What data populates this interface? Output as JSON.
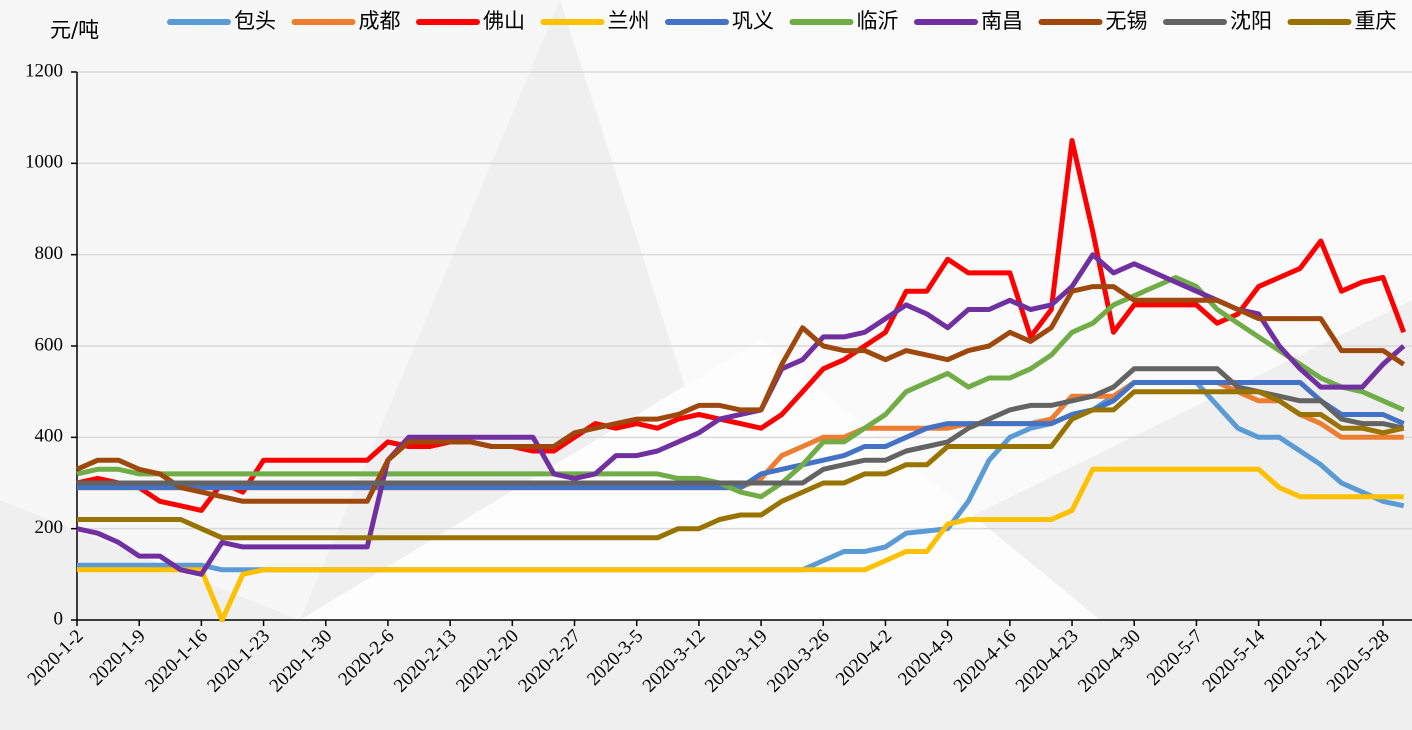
{
  "chart_data": {
    "type": "line",
    "y_label": "元/吨",
    "categories": [
      "2020-1-2",
      null,
      null,
      "2020-1-9",
      null,
      null,
      "2020-1-16",
      null,
      null,
      "2020-1-23",
      null,
      null,
      "2020-1-30",
      null,
      null,
      "2020-2-6",
      null,
      null,
      "2020-2-13",
      null,
      null,
      "2020-2-20",
      null,
      null,
      "2020-2-27",
      null,
      null,
      "2020-3-5",
      null,
      null,
      "2020-3-12",
      null,
      null,
      "2020-3-19",
      null,
      null,
      "2020-3-26",
      null,
      null,
      "2020-4-2",
      null,
      null,
      "2020-4-9",
      null,
      null,
      "2020-4-16",
      null,
      null,
      "2020-4-23",
      null,
      null,
      "2020-4-30",
      null,
      null,
      "2020-5-7",
      null,
      null,
      "2020-5-14",
      null,
      null,
      "2020-5-21",
      null,
      null,
      "2020-5-28",
      null
    ],
    "ylim": [
      0,
      1200
    ],
    "yticks": [
      0,
      200,
      400,
      600,
      800,
      1000,
      1200
    ],
    "grid": true,
    "series": [
      {
        "name": "包头",
        "color": "#5b9bd5",
        "values": [
          120,
          120,
          120,
          120,
          120,
          120,
          120,
          110,
          110,
          110,
          110,
          110,
          110,
          110,
          110,
          110,
          110,
          110,
          110,
          110,
          110,
          110,
          110,
          110,
          110,
          110,
          110,
          110,
          110,
          110,
          110,
          110,
          110,
          110,
          110,
          110,
          130,
          150,
          150,
          160,
          190,
          195,
          200,
          260,
          350,
          400,
          420,
          430,
          450,
          460,
          490,
          520,
          520,
          520,
          520,
          470,
          420,
          400,
          400,
          370,
          340,
          300,
          280,
          260,
          250
        ]
      },
      {
        "name": "成都",
        "color": "#ed7d31",
        "values": [
          290,
          290,
          290,
          290,
          290,
          290,
          290,
          290,
          290,
          290,
          290,
          290,
          290,
          290,
          290,
          290,
          290,
          290,
          290,
          290,
          290,
          290,
          290,
          290,
          290,
          290,
          290,
          290,
          290,
          290,
          290,
          290,
          290,
          310,
          360,
          380,
          400,
          400,
          420,
          420,
          420,
          420,
          420,
          430,
          430,
          430,
          430,
          440,
          490,
          490,
          490,
          520,
          520,
          520,
          520,
          520,
          500,
          480,
          480,
          450,
          430,
          400,
          400,
          400,
          400
        ]
      },
      {
        "name": "佛山",
        "color": "#ff0000",
        "values": [
          300,
          310,
          300,
          290,
          260,
          250,
          240,
          300,
          280,
          350,
          350,
          350,
          350,
          350,
          350,
          390,
          380,
          380,
          390,
          390,
          380,
          380,
          370,
          370,
          400,
          430,
          420,
          430,
          420,
          440,
          450,
          440,
          430,
          420,
          450,
          500,
          550,
          570,
          600,
          630,
          720,
          720,
          790,
          760,
          760,
          760,
          620,
          680,
          1050,
          850,
          630,
          690,
          690,
          690,
          690,
          650,
          670,
          730,
          750,
          770,
          830,
          720,
          740,
          750,
          630
        ]
      },
      {
        "name": "兰州",
        "color": "#ffc000",
        "values": [
          110,
          110,
          110,
          110,
          110,
          110,
          110,
          0,
          100,
          110,
          110,
          110,
          110,
          110,
          110,
          110,
          110,
          110,
          110,
          110,
          110,
          110,
          110,
          110,
          110,
          110,
          110,
          110,
          110,
          110,
          110,
          110,
          110,
          110,
          110,
          110,
          110,
          110,
          110,
          130,
          150,
          150,
          210,
          220,
          220,
          220,
          220,
          220,
          240,
          330,
          330,
          330,
          330,
          330,
          330,
          330,
          330,
          330,
          290,
          270,
          270,
          270,
          270,
          270,
          270
        ]
      },
      {
        "name": "巩义",
        "color": "#4472c4",
        "values": [
          290,
          290,
          290,
          290,
          290,
          290,
          290,
          290,
          290,
          290,
          290,
          290,
          290,
          290,
          290,
          290,
          290,
          290,
          290,
          290,
          290,
          290,
          290,
          290,
          290,
          290,
          290,
          290,
          290,
          290,
          290,
          290,
          290,
          320,
          330,
          340,
          350,
          360,
          380,
          380,
          400,
          420,
          430,
          430,
          430,
          430,
          430,
          430,
          450,
          460,
          480,
          520,
          520,
          520,
          520,
          520,
          520,
          520,
          520,
          520,
          480,
          450,
          450,
          450,
          430
        ]
      },
      {
        "name": "临沂",
        "color": "#70ad47",
        "values": [
          320,
          330,
          330,
          320,
          320,
          320,
          320,
          320,
          320,
          320,
          320,
          320,
          320,
          320,
          320,
          320,
          320,
          320,
          320,
          320,
          320,
          320,
          320,
          320,
          320,
          320,
          320,
          320,
          320,
          310,
          310,
          300,
          280,
          270,
          300,
          340,
          390,
          390,
          420,
          450,
          500,
          520,
          540,
          510,
          530,
          530,
          550,
          580,
          630,
          650,
          690,
          710,
          730,
          750,
          730,
          680,
          650,
          620,
          590,
          560,
          530,
          510,
          500,
          480,
          460
        ]
      },
      {
        "name": "南昌",
        "color": "#7030a0",
        "values": [
          200,
          190,
          170,
          140,
          140,
          110,
          100,
          170,
          160,
          160,
          160,
          160,
          160,
          160,
          160,
          350,
          400,
          400,
          400,
          400,
          400,
          400,
          400,
          320,
          310,
          320,
          360,
          360,
          370,
          390,
          410,
          440,
          450,
          460,
          550,
          570,
          620,
          620,
          630,
          660,
          690,
          670,
          640,
          680,
          680,
          700,
          680,
          690,
          730,
          800,
          760,
          780,
          760,
          740,
          720,
          700,
          680,
          670,
          600,
          550,
          510,
          510,
          510,
          560,
          600
        ]
      },
      {
        "name": "无锡",
        "color": "#9e480e",
        "values": [
          330,
          350,
          350,
          330,
          320,
          290,
          280,
          270,
          260,
          260,
          260,
          260,
          260,
          260,
          260,
          350,
          390,
          390,
          390,
          390,
          380,
          380,
          380,
          380,
          410,
          420,
          430,
          440,
          440,
          450,
          470,
          470,
          460,
          460,
          560,
          640,
          600,
          590,
          590,
          570,
          590,
          580,
          570,
          590,
          600,
          630,
          610,
          640,
          720,
          730,
          730,
          700,
          700,
          700,
          700,
          700,
          680,
          660,
          660,
          660,
          660,
          590,
          590,
          590,
          560
        ]
      },
      {
        "name": "沈阳",
        "color": "#636363",
        "values": [
          300,
          300,
          300,
          300,
          300,
          300,
          300,
          300,
          300,
          300,
          300,
          300,
          300,
          300,
          300,
          300,
          300,
          300,
          300,
          300,
          300,
          300,
          300,
          300,
          300,
          300,
          300,
          300,
          300,
          300,
          300,
          300,
          300,
          300,
          300,
          300,
          330,
          340,
          350,
          350,
          370,
          380,
          390,
          420,
          440,
          460,
          470,
          470,
          480,
          490,
          510,
          550,
          550,
          550,
          550,
          550,
          510,
          500,
          490,
          480,
          480,
          440,
          430,
          430,
          420
        ]
      },
      {
        "name": "重庆",
        "color": "#997300",
        "values": [
          220,
          220,
          220,
          220,
          220,
          220,
          200,
          180,
          180,
          180,
          180,
          180,
          180,
          180,
          180,
          180,
          180,
          180,
          180,
          180,
          180,
          180,
          180,
          180,
          180,
          180,
          180,
          180,
          180,
          200,
          200,
          220,
          230,
          230,
          260,
          280,
          300,
          300,
          320,
          320,
          340,
          340,
          380,
          380,
          380,
          380,
          380,
          380,
          440,
          460,
          460,
          500,
          500,
          500,
          500,
          500,
          500,
          500,
          480,
          450,
          450,
          420,
          420,
          410,
          420
        ]
      }
    ]
  }
}
